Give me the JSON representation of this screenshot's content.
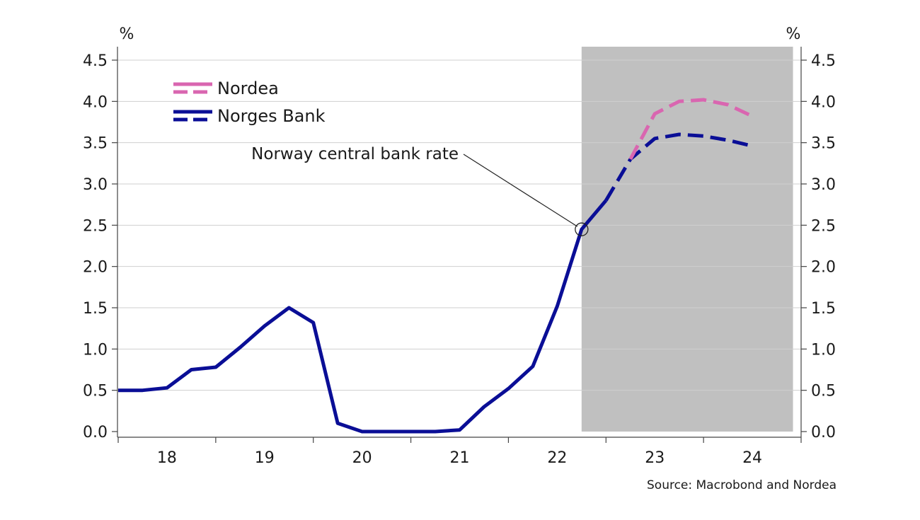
{
  "chart_data": {
    "type": "line",
    "title": "",
    "xlabel": "",
    "ylabel": "",
    "y_unit_left": "%",
    "y_unit_right": "%",
    "ylim": [
      0,
      4.5
    ],
    "y_ticks": [
      "0.0",
      "0.5",
      "1.0",
      "1.5",
      "2.0",
      "2.5",
      "3.0",
      "3.5",
      "4.0",
      "4.5"
    ],
    "x_ticks": [
      "18",
      "19",
      "20",
      "21",
      "22",
      "23",
      "24"
    ],
    "forecast_shading": {
      "from": "2022-10",
      "to": "2024-12",
      "color": "#c0c0c0"
    },
    "grid": "horizontal",
    "legend_position": "top-left",
    "legend": [
      {
        "label": "Nordea",
        "color": "#d966b0",
        "style": "dashed"
      },
      {
        "label": "Norges Bank",
        "color": "#0a0e96",
        "style": "solid+dashed"
      }
    ],
    "series": [
      {
        "name": "Norges Bank",
        "color": "#0a0e96",
        "style": "solid",
        "points": [
          [
            "2018-01",
            0.5
          ],
          [
            "2018-04",
            0.5
          ],
          [
            "2018-07",
            0.53
          ],
          [
            "2018-10",
            0.75
          ],
          [
            "2019-01",
            0.78
          ],
          [
            "2019-04",
            1.02
          ],
          [
            "2019-07",
            1.28
          ],
          [
            "2019-10",
            1.5
          ],
          [
            "2020-01",
            1.32
          ],
          [
            "2020-04",
            0.1
          ],
          [
            "2020-07",
            0.0
          ],
          [
            "2020-10",
            0.0
          ],
          [
            "2021-01",
            0.0
          ],
          [
            "2021-04",
            0.0
          ],
          [
            "2021-07",
            0.02
          ],
          [
            "2021-10",
            0.3
          ],
          [
            "2022-01",
            0.52
          ],
          [
            "2022-04",
            0.79
          ],
          [
            "2022-07",
            1.52
          ],
          [
            "2022-10",
            2.45
          ],
          [
            "2023-01",
            2.8
          ]
        ]
      },
      {
        "name": "Norges Bank",
        "color": "#0a0e96",
        "style": "dashed",
        "points": [
          [
            "2023-01",
            2.8
          ],
          [
            "2023-04",
            3.3
          ],
          [
            "2023-07",
            3.55
          ],
          [
            "2023-10",
            3.6
          ],
          [
            "2024-01",
            3.58
          ],
          [
            "2024-04",
            3.53
          ],
          [
            "2024-07",
            3.46
          ]
        ]
      },
      {
        "name": "Nordea",
        "color": "#d966b0",
        "style": "dashed",
        "points": [
          [
            "2023-04",
            3.3
          ],
          [
            "2023-07",
            3.85
          ],
          [
            "2023-10",
            4.0
          ],
          [
            "2024-01",
            4.02
          ],
          [
            "2024-04",
            3.96
          ],
          [
            "2024-07",
            3.82
          ]
        ]
      }
    ],
    "annotations": [
      {
        "text": "Norway central bank rate",
        "x": "2022-10",
        "y": 2.45
      }
    ],
    "source": "Source: Macrobond and Nordea"
  }
}
